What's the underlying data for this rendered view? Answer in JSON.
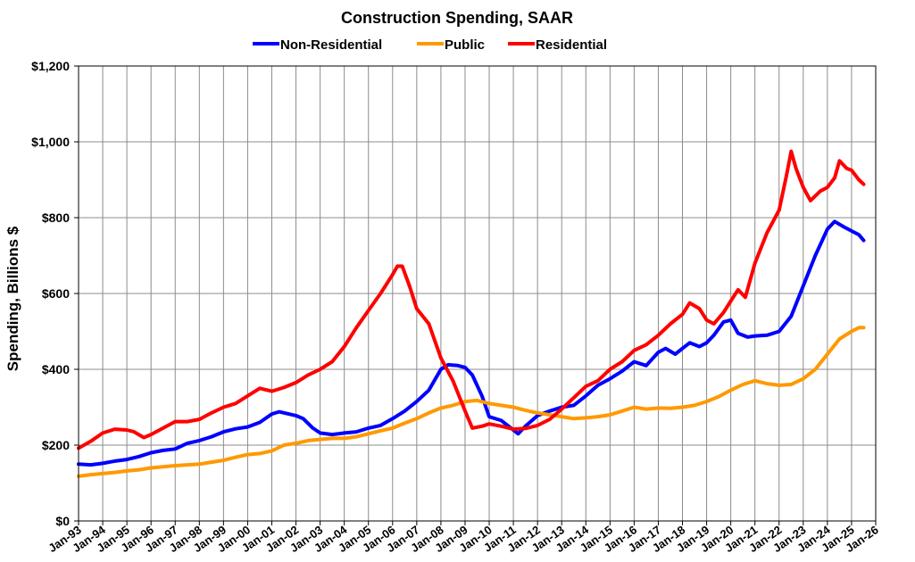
{
  "chart_data": {
    "type": "line",
    "title": "Construction Spending, SAAR",
    "xlabel": "",
    "ylabel": "Spending, Billions $",
    "ylim": [
      0,
      1200
    ],
    "yticks": [
      "$0",
      "$200",
      "$400",
      "$600",
      "$800",
      "$1,000",
      "$1,200"
    ],
    "y_tick_values": [
      0,
      200,
      400,
      600,
      800,
      1000,
      1200
    ],
    "xticks": [
      "Jan-93",
      "Jan-94",
      "Jan-95",
      "Jan-96",
      "Jan-97",
      "Jan-98",
      "Jan-99",
      "Jan-00",
      "Jan-01",
      "Jan-02",
      "Jan-03",
      "Jan-04",
      "Jan-05",
      "Jan-06",
      "Jan-07",
      "Jan-08",
      "Jan-09",
      "Jan-10",
      "Jan-11",
      "Jan-12",
      "Jan-13",
      "Jan-14",
      "Jan-15",
      "Jan-16",
      "Jan-17",
      "Jan-18",
      "Jan-19",
      "Jan-20",
      "Jan-21",
      "Jan-22",
      "Jan-23",
      "Jan-24",
      "Jan-25",
      "Jan-26"
    ],
    "xlim": [
      1993,
      2026
    ],
    "grid": true,
    "legend_position": "top",
    "series": [
      {
        "name": "Non-Residential",
        "color": "#0000ff",
        "points": [
          [
            1993.0,
            150
          ],
          [
            1993.5,
            148
          ],
          [
            1994.0,
            152
          ],
          [
            1994.5,
            158
          ],
          [
            1995.0,
            162
          ],
          [
            1995.5,
            170
          ],
          [
            1996.0,
            180
          ],
          [
            1996.5,
            186
          ],
          [
            1997.0,
            190
          ],
          [
            1997.5,
            205
          ],
          [
            1998.0,
            212
          ],
          [
            1998.5,
            222
          ],
          [
            1999.0,
            235
          ],
          [
            1999.5,
            243
          ],
          [
            2000.0,
            248
          ],
          [
            2000.5,
            260
          ],
          [
            2001.0,
            282
          ],
          [
            2001.3,
            288
          ],
          [
            2001.7,
            282
          ],
          [
            2002.0,
            278
          ],
          [
            2002.3,
            270
          ],
          [
            2002.7,
            245
          ],
          [
            2003.0,
            232
          ],
          [
            2003.5,
            228
          ],
          [
            2004.0,
            232
          ],
          [
            2004.5,
            235
          ],
          [
            2005.0,
            245
          ],
          [
            2005.5,
            252
          ],
          [
            2006.0,
            270
          ],
          [
            2006.5,
            290
          ],
          [
            2007.0,
            315
          ],
          [
            2007.5,
            345
          ],
          [
            2008.0,
            400
          ],
          [
            2008.3,
            412
          ],
          [
            2008.7,
            410
          ],
          [
            2009.0,
            405
          ],
          [
            2009.3,
            385
          ],
          [
            2009.7,
            330
          ],
          [
            2010.0,
            275
          ],
          [
            2010.5,
            265
          ],
          [
            2011.0,
            240
          ],
          [
            2011.2,
            230
          ],
          [
            2011.5,
            250
          ],
          [
            2012.0,
            278
          ],
          [
            2012.5,
            290
          ],
          [
            2013.0,
            300
          ],
          [
            2013.5,
            305
          ],
          [
            2014.0,
            330
          ],
          [
            2014.5,
            358
          ],
          [
            2015.0,
            375
          ],
          [
            2015.5,
            395
          ],
          [
            2016.0,
            420
          ],
          [
            2016.5,
            410
          ],
          [
            2017.0,
            445
          ],
          [
            2017.3,
            455
          ],
          [
            2017.7,
            440
          ],
          [
            2018.0,
            455
          ],
          [
            2018.3,
            470
          ],
          [
            2018.7,
            460
          ],
          [
            2019.0,
            470
          ],
          [
            2019.3,
            490
          ],
          [
            2019.7,
            525
          ],
          [
            2020.0,
            530
          ],
          [
            2020.3,
            495
          ],
          [
            2020.7,
            485
          ],
          [
            2021.0,
            488
          ],
          [
            2021.5,
            490
          ],
          [
            2022.0,
            500
          ],
          [
            2022.5,
            540
          ],
          [
            2023.0,
            620
          ],
          [
            2023.5,
            700
          ],
          [
            2024.0,
            770
          ],
          [
            2024.3,
            790
          ],
          [
            2024.7,
            775
          ],
          [
            2025.0,
            765
          ],
          [
            2025.3,
            755
          ],
          [
            2025.5,
            740
          ]
        ]
      },
      {
        "name": "Public",
        "color": "#ff9900",
        "points": [
          [
            1993.0,
            118
          ],
          [
            1993.5,
            122
          ],
          [
            1994.0,
            125
          ],
          [
            1994.5,
            128
          ],
          [
            1995.0,
            132
          ],
          [
            1995.5,
            135
          ],
          [
            1996.0,
            140
          ],
          [
            1996.5,
            143
          ],
          [
            1997.0,
            146
          ],
          [
            1997.5,
            148
          ],
          [
            1998.0,
            150
          ],
          [
            1998.5,
            155
          ],
          [
            1999.0,
            160
          ],
          [
            1999.5,
            168
          ],
          [
            2000.0,
            175
          ],
          [
            2000.5,
            178
          ],
          [
            2001.0,
            185
          ],
          [
            2001.5,
            200
          ],
          [
            2002.0,
            205
          ],
          [
            2002.5,
            212
          ],
          [
            2003.0,
            215
          ],
          [
            2003.5,
            218
          ],
          [
            2004.0,
            218
          ],
          [
            2004.5,
            222
          ],
          [
            2005.0,
            230
          ],
          [
            2005.5,
            238
          ],
          [
            2006.0,
            245
          ],
          [
            2006.5,
            258
          ],
          [
            2007.0,
            270
          ],
          [
            2007.5,
            285
          ],
          [
            2008.0,
            298
          ],
          [
            2008.5,
            305
          ],
          [
            2009.0,
            315
          ],
          [
            2009.5,
            318
          ],
          [
            2010.0,
            310
          ],
          [
            2010.5,
            305
          ],
          [
            2011.0,
            300
          ],
          [
            2011.5,
            292
          ],
          [
            2012.0,
            285
          ],
          [
            2012.5,
            280
          ],
          [
            2013.0,
            275
          ],
          [
            2013.5,
            270
          ],
          [
            2014.0,
            272
          ],
          [
            2014.5,
            275
          ],
          [
            2015.0,
            280
          ],
          [
            2015.5,
            290
          ],
          [
            2016.0,
            300
          ],
          [
            2016.5,
            295
          ],
          [
            2017.0,
            298
          ],
          [
            2017.5,
            297
          ],
          [
            2018.0,
            300
          ],
          [
            2018.5,
            305
          ],
          [
            2019.0,
            315
          ],
          [
            2019.5,
            328
          ],
          [
            2020.0,
            345
          ],
          [
            2020.5,
            360
          ],
          [
            2021.0,
            370
          ],
          [
            2021.5,
            362
          ],
          [
            2022.0,
            358
          ],
          [
            2022.5,
            360
          ],
          [
            2023.0,
            375
          ],
          [
            2023.5,
            400
          ],
          [
            2024.0,
            440
          ],
          [
            2024.5,
            480
          ],
          [
            2025.0,
            500
          ],
          [
            2025.3,
            510
          ],
          [
            2025.5,
            510
          ]
        ]
      },
      {
        "name": "Residential",
        "color": "#ff0000",
        "points": [
          [
            1993.0,
            192
          ],
          [
            1993.5,
            210
          ],
          [
            1994.0,
            232
          ],
          [
            1994.5,
            242
          ],
          [
            1995.0,
            240
          ],
          [
            1995.3,
            235
          ],
          [
            1995.7,
            220
          ],
          [
            1996.0,
            228
          ],
          [
            1996.5,
            245
          ],
          [
            1997.0,
            262
          ],
          [
            1997.5,
            262
          ],
          [
            1998.0,
            268
          ],
          [
            1998.5,
            285
          ],
          [
            1999.0,
            300
          ],
          [
            1999.5,
            310
          ],
          [
            2000.0,
            330
          ],
          [
            2000.5,
            350
          ],
          [
            2001.0,
            342
          ],
          [
            2001.5,
            352
          ],
          [
            2002.0,
            365
          ],
          [
            2002.5,
            385
          ],
          [
            2003.0,
            400
          ],
          [
            2003.5,
            420
          ],
          [
            2004.0,
            460
          ],
          [
            2004.5,
            510
          ],
          [
            2005.0,
            555
          ],
          [
            2005.5,
            600
          ],
          [
            2006.0,
            650
          ],
          [
            2006.2,
            672
          ],
          [
            2006.4,
            672
          ],
          [
            2006.7,
            620
          ],
          [
            2007.0,
            560
          ],
          [
            2007.5,
            520
          ],
          [
            2008.0,
            430
          ],
          [
            2008.5,
            370
          ],
          [
            2009.0,
            290
          ],
          [
            2009.3,
            245
          ],
          [
            2009.7,
            250
          ],
          [
            2010.0,
            256
          ],
          [
            2010.5,
            250
          ],
          [
            2011.0,
            242
          ],
          [
            2011.5,
            244
          ],
          [
            2012.0,
            252
          ],
          [
            2012.5,
            268
          ],
          [
            2013.0,
            295
          ],
          [
            2013.5,
            325
          ],
          [
            2014.0,
            355
          ],
          [
            2014.5,
            370
          ],
          [
            2015.0,
            400
          ],
          [
            2015.5,
            420
          ],
          [
            2016.0,
            450
          ],
          [
            2016.5,
            465
          ],
          [
            2017.0,
            490
          ],
          [
            2017.5,
            520
          ],
          [
            2018.0,
            545
          ],
          [
            2018.3,
            575
          ],
          [
            2018.7,
            560
          ],
          [
            2019.0,
            530
          ],
          [
            2019.3,
            520
          ],
          [
            2019.7,
            550
          ],
          [
            2020.0,
            580
          ],
          [
            2020.3,
            610
          ],
          [
            2020.6,
            590
          ],
          [
            2021.0,
            680
          ],
          [
            2021.5,
            760
          ],
          [
            2022.0,
            820
          ],
          [
            2022.3,
            910
          ],
          [
            2022.5,
            975
          ],
          [
            2022.7,
            930
          ],
          [
            2023.0,
            880
          ],
          [
            2023.3,
            845
          ],
          [
            2023.7,
            870
          ],
          [
            2024.0,
            880
          ],
          [
            2024.3,
            905
          ],
          [
            2024.5,
            950
          ],
          [
            2024.8,
            930
          ],
          [
            2025.0,
            925
          ],
          [
            2025.3,
            900
          ],
          [
            2025.5,
            888
          ]
        ]
      }
    ]
  }
}
